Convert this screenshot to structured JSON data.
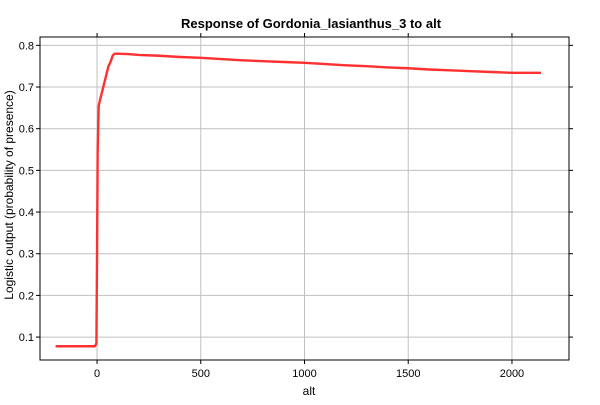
{
  "chart_data": {
    "type": "line",
    "title": "Response of Gordonia_lasianthus_3 to alt",
    "xlabel": "alt",
    "ylabel": "Logistic output (probability of presence)",
    "xlim": [
      -275,
      2275
    ],
    "ylim": [
      0.045,
      0.82
    ],
    "xticks": [
      0,
      500,
      1000,
      1500,
      2000
    ],
    "yticks": [
      0.1,
      0.2,
      0.3,
      0.4,
      0.5,
      0.6,
      0.7,
      0.8
    ],
    "grid": true,
    "legend": "none",
    "series": [
      {
        "color": "#ff3030",
        "x": [
          -200,
          -10,
          -3,
          0,
          3,
          8,
          15,
          25,
          35,
          45,
          55,
          65,
          75,
          80,
          85,
          90,
          150,
          200,
          300,
          400,
          500,
          600,
          700,
          800,
          900,
          1000,
          1100,
          1200,
          1300,
          1400,
          1500,
          1600,
          1700,
          1800,
          1900,
          2000,
          2140
        ],
        "y": [
          0.078,
          0.078,
          0.085,
          0.3,
          0.55,
          0.655,
          0.67,
          0.69,
          0.71,
          0.73,
          0.75,
          0.76,
          0.775,
          0.778,
          0.78,
          0.78,
          0.779,
          0.777,
          0.775,
          0.772,
          0.77,
          0.767,
          0.764,
          0.762,
          0.76,
          0.758,
          0.755,
          0.752,
          0.75,
          0.747,
          0.745,
          0.742,
          0.74,
          0.738,
          0.736,
          0.734,
          0.734
        ]
      }
    ]
  }
}
